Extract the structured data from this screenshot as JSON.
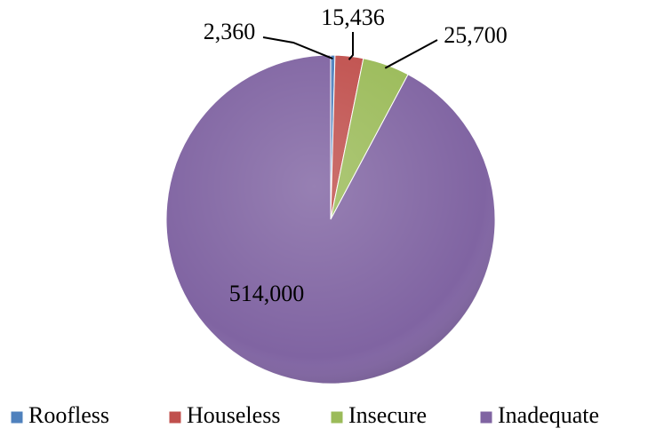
{
  "chart_data": {
    "type": "pie",
    "categories": [
      "Roofless",
      "Houseless",
      "Insecure",
      "Inadequate"
    ],
    "values": [
      2360,
      15436,
      25700,
      514000
    ],
    "value_labels": [
      "2,360",
      "15,436",
      "25,700",
      "514,000"
    ],
    "colors": [
      "#4f81bd",
      "#c0504d",
      "#9bbb59",
      "#8064a2"
    ],
    "legend": "bottom"
  }
}
